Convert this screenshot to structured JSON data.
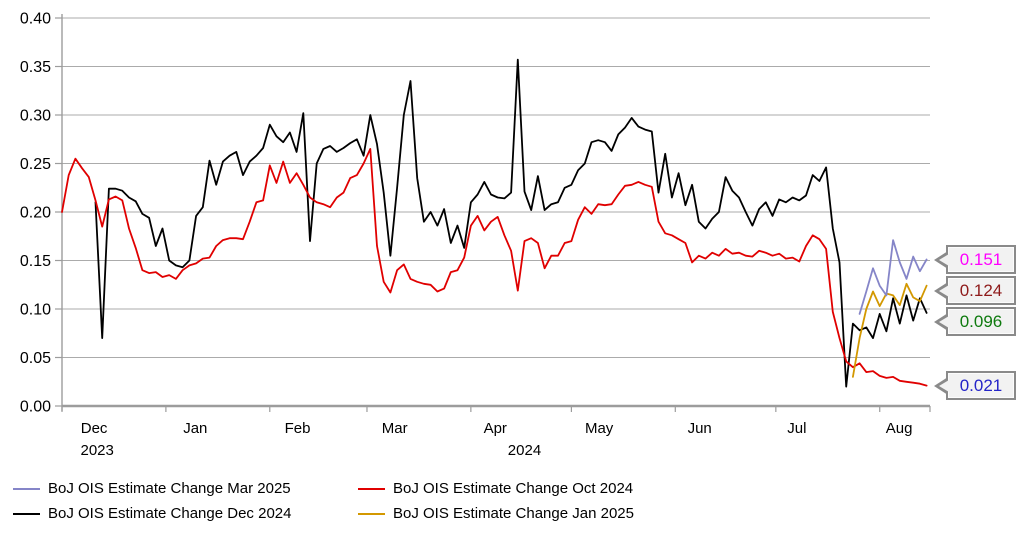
{
  "chart_data": {
    "type": "line",
    "title": "",
    "grid": true,
    "legend_position": "bottom-left",
    "style": {
      "background": "#ffffff",
      "grid_color": "#ababab",
      "axis_color": "#9c9c9c",
      "callout_bg": "#f2f2f2",
      "callout_border": "#8a8a8a",
      "text_color": "#000000"
    },
    "y_axis": {
      "min": 0.0,
      "max": 0.4,
      "tick_step": 0.05,
      "tick_labels": [
        "0.40",
        "0.35",
        "0.30",
        "0.25",
        "0.20",
        "0.15",
        "0.10",
        "0.05",
        "0.00"
      ]
    },
    "x_axis": {
      "unit": "days from Dec 1 2023",
      "range_days": [
        0,
        259
      ],
      "points_step_days": 2,
      "month_tick_days": [
        0,
        31,
        62,
        91,
        122,
        152,
        183,
        213,
        244,
        259
      ],
      "month_labels": [
        {
          "label": "Dec",
          "day": 4.8
        },
        {
          "label": "Jan",
          "day": 35
        },
        {
          "label": "Feb",
          "day": 65.5
        },
        {
          "label": "Mar",
          "day": 94.5
        },
        {
          "label": "Apr",
          "day": 124.5
        },
        {
          "label": "May",
          "day": 155.5
        },
        {
          "label": "Jun",
          "day": 185.5
        },
        {
          "label": "Jul",
          "day": 214.5
        },
        {
          "label": "Aug",
          "day": 245
        }
      ],
      "year_labels": [
        {
          "label": "2023",
          "day": 10.5
        },
        {
          "label": "2024",
          "day": 138
        }
      ]
    },
    "series": [
      {
        "name": "BoJ OIS Estimate Change Mar 2025",
        "color": "#8585c8",
        "end_label": {
          "text": "0.151",
          "value": 0.151,
          "color": "#ff00ff"
        },
        "values": [
          null,
          null,
          null,
          null,
          null,
          null,
          null,
          null,
          null,
          null,
          null,
          null,
          null,
          null,
          null,
          null,
          null,
          null,
          null,
          null,
          null,
          null,
          null,
          null,
          null,
          null,
          null,
          null,
          null,
          null,
          null,
          null,
          null,
          null,
          null,
          null,
          null,
          null,
          null,
          null,
          null,
          null,
          null,
          null,
          null,
          null,
          null,
          null,
          null,
          null,
          null,
          null,
          null,
          null,
          null,
          null,
          null,
          null,
          null,
          null,
          null,
          null,
          null,
          null,
          null,
          null,
          null,
          null,
          null,
          null,
          null,
          null,
          null,
          null,
          null,
          null,
          null,
          null,
          null,
          null,
          null,
          null,
          null,
          null,
          null,
          null,
          null,
          null,
          null,
          null,
          null,
          null,
          null,
          null,
          null,
          null,
          null,
          null,
          null,
          null,
          null,
          null,
          null,
          null,
          null,
          null,
          null,
          null,
          null,
          null,
          null,
          null,
          null,
          null,
          null,
          null,
          null,
          null,
          null,
          0.095,
          0.118,
          0.142,
          0.124,
          0.114,
          0.171,
          0.148,
          0.131,
          0.154,
          0.139,
          0.151
        ]
      },
      {
        "name": "BoJ OIS Estimate Change Oct 2024",
        "color": "#e00000",
        "end_label": {
          "text": "0.021",
          "value": 0.021,
          "color": "#2424c8"
        },
        "values": [
          0.2,
          0.238,
          0.255,
          0.245,
          0.236,
          0.212,
          0.185,
          0.213,
          0.216,
          0.212,
          0.183,
          0.163,
          0.14,
          0.137,
          0.138,
          0.133,
          0.135,
          0.131,
          0.14,
          0.145,
          0.147,
          0.152,
          0.153,
          0.165,
          0.171,
          0.173,
          0.173,
          0.172,
          0.19,
          0.21,
          0.212,
          0.248,
          0.23,
          0.252,
          0.23,
          0.24,
          0.228,
          0.215,
          0.21,
          0.208,
          0.205,
          0.215,
          0.22,
          0.235,
          0.238,
          0.25,
          0.265,
          0.165,
          0.128,
          0.117,
          0.14,
          0.146,
          0.131,
          0.128,
          0.126,
          0.125,
          0.118,
          0.121,
          0.138,
          0.14,
          0.153,
          0.186,
          0.196,
          0.181,
          0.19,
          0.195,
          0.176,
          0.16,
          0.119,
          0.17,
          0.173,
          0.168,
          0.142,
          0.155,
          0.155,
          0.168,
          0.17,
          0.192,
          0.205,
          0.198,
          0.208,
          0.207,
          0.208,
          0.218,
          0.227,
          0.228,
          0.231,
          0.228,
          0.226,
          0.19,
          0.178,
          0.176,
          0.172,
          0.168,
          0.148,
          0.155,
          0.152,
          0.158,
          0.155,
          0.162,
          0.157,
          0.158,
          0.155,
          0.154,
          0.16,
          0.158,
          0.155,
          0.157,
          0.152,
          0.153,
          0.149,
          0.165,
          0.176,
          0.172,
          0.162,
          0.097,
          0.07,
          0.046,
          0.04,
          0.044,
          0.035,
          0.036,
          0.031,
          0.029,
          0.03,
          0.026,
          0.025,
          0.024,
          0.023,
          0.021
        ]
      },
      {
        "name": "BoJ OIS Estimate Change Dec 2024",
        "color": "#000000",
        "end_label": {
          "text": "0.096",
          "value": 0.096,
          "color": "#0e7a0e"
        },
        "values": [
          null,
          null,
          null,
          null,
          null,
          0.21,
          0.07,
          0.224,
          0.224,
          0.222,
          0.215,
          0.211,
          0.198,
          0.194,
          0.165,
          0.183,
          0.15,
          0.145,
          0.143,
          0.15,
          0.196,
          0.205,
          0.253,
          0.228,
          0.252,
          0.258,
          0.262,
          0.238,
          0.252,
          0.258,
          0.266,
          0.29,
          0.278,
          0.272,
          0.282,
          0.262,
          0.302,
          0.17,
          0.25,
          0.265,
          0.268,
          0.262,
          0.266,
          0.271,
          0.275,
          0.258,
          0.3,
          0.27,
          0.22,
          0.155,
          0.225,
          0.3,
          0.335,
          0.235,
          0.19,
          0.2,
          0.186,
          0.203,
          0.168,
          0.186,
          0.163,
          0.21,
          0.218,
          0.231,
          0.218,
          0.215,
          0.214,
          0.22,
          0.357,
          0.221,
          0.202,
          0.237,
          0.202,
          0.208,
          0.21,
          0.225,
          0.228,
          0.243,
          0.25,
          0.272,
          0.274,
          0.272,
          0.263,
          0.28,
          0.287,
          0.297,
          0.288,
          0.285,
          0.283,
          0.22,
          0.26,
          0.215,
          0.24,
          0.207,
          0.228,
          0.19,
          0.183,
          0.193,
          0.2,
          0.236,
          0.222,
          0.215,
          0.2,
          0.186,
          0.203,
          0.21,
          0.196,
          0.213,
          0.21,
          0.215,
          0.212,
          0.217,
          0.238,
          0.232,
          0.246,
          0.183,
          0.148,
          0.02,
          0.085,
          0.078,
          0.081,
          0.07,
          0.095,
          0.077,
          0.111,
          0.085,
          0.114,
          0.088,
          0.111,
          0.096
        ]
      },
      {
        "name": "BoJ OIS Estimate Change Jan 2025",
        "color": "#d39800",
        "end_label": {
          "text": "0.124",
          "value": 0.124,
          "color": "#8e1a1a"
        },
        "values": [
          null,
          null,
          null,
          null,
          null,
          null,
          null,
          null,
          null,
          null,
          null,
          null,
          null,
          null,
          null,
          null,
          null,
          null,
          null,
          null,
          null,
          null,
          null,
          null,
          null,
          null,
          null,
          null,
          null,
          null,
          null,
          null,
          null,
          null,
          null,
          null,
          null,
          null,
          null,
          null,
          null,
          null,
          null,
          null,
          null,
          null,
          null,
          null,
          null,
          null,
          null,
          null,
          null,
          null,
          null,
          null,
          null,
          null,
          null,
          null,
          null,
          null,
          null,
          null,
          null,
          null,
          null,
          null,
          null,
          null,
          null,
          null,
          null,
          null,
          null,
          null,
          null,
          null,
          null,
          null,
          null,
          null,
          null,
          null,
          null,
          null,
          null,
          null,
          null,
          null,
          null,
          null,
          null,
          null,
          null,
          null,
          null,
          null,
          null,
          null,
          null,
          null,
          null,
          null,
          null,
          null,
          null,
          null,
          null,
          null,
          null,
          null,
          null,
          null,
          null,
          null,
          null,
          null,
          0.03,
          0.07,
          0.1,
          0.118,
          0.103,
          0.116,
          0.114,
          0.104,
          0.126,
          0.112,
          0.108,
          0.124
        ]
      }
    ],
    "callouts": [
      {
        "text": "0.151",
        "value": 0.151,
        "color": "#ff00ff"
      },
      {
        "text": "0.124",
        "value": 0.124,
        "color": "#8e1a1a"
      },
      {
        "text": "0.096",
        "value": 0.096,
        "color": "#0e7a0e"
      },
      {
        "text": "0.021",
        "value": 0.021,
        "color": "#2424c8"
      }
    ],
    "draw_order": [
      2,
      1,
      3,
      0
    ]
  }
}
